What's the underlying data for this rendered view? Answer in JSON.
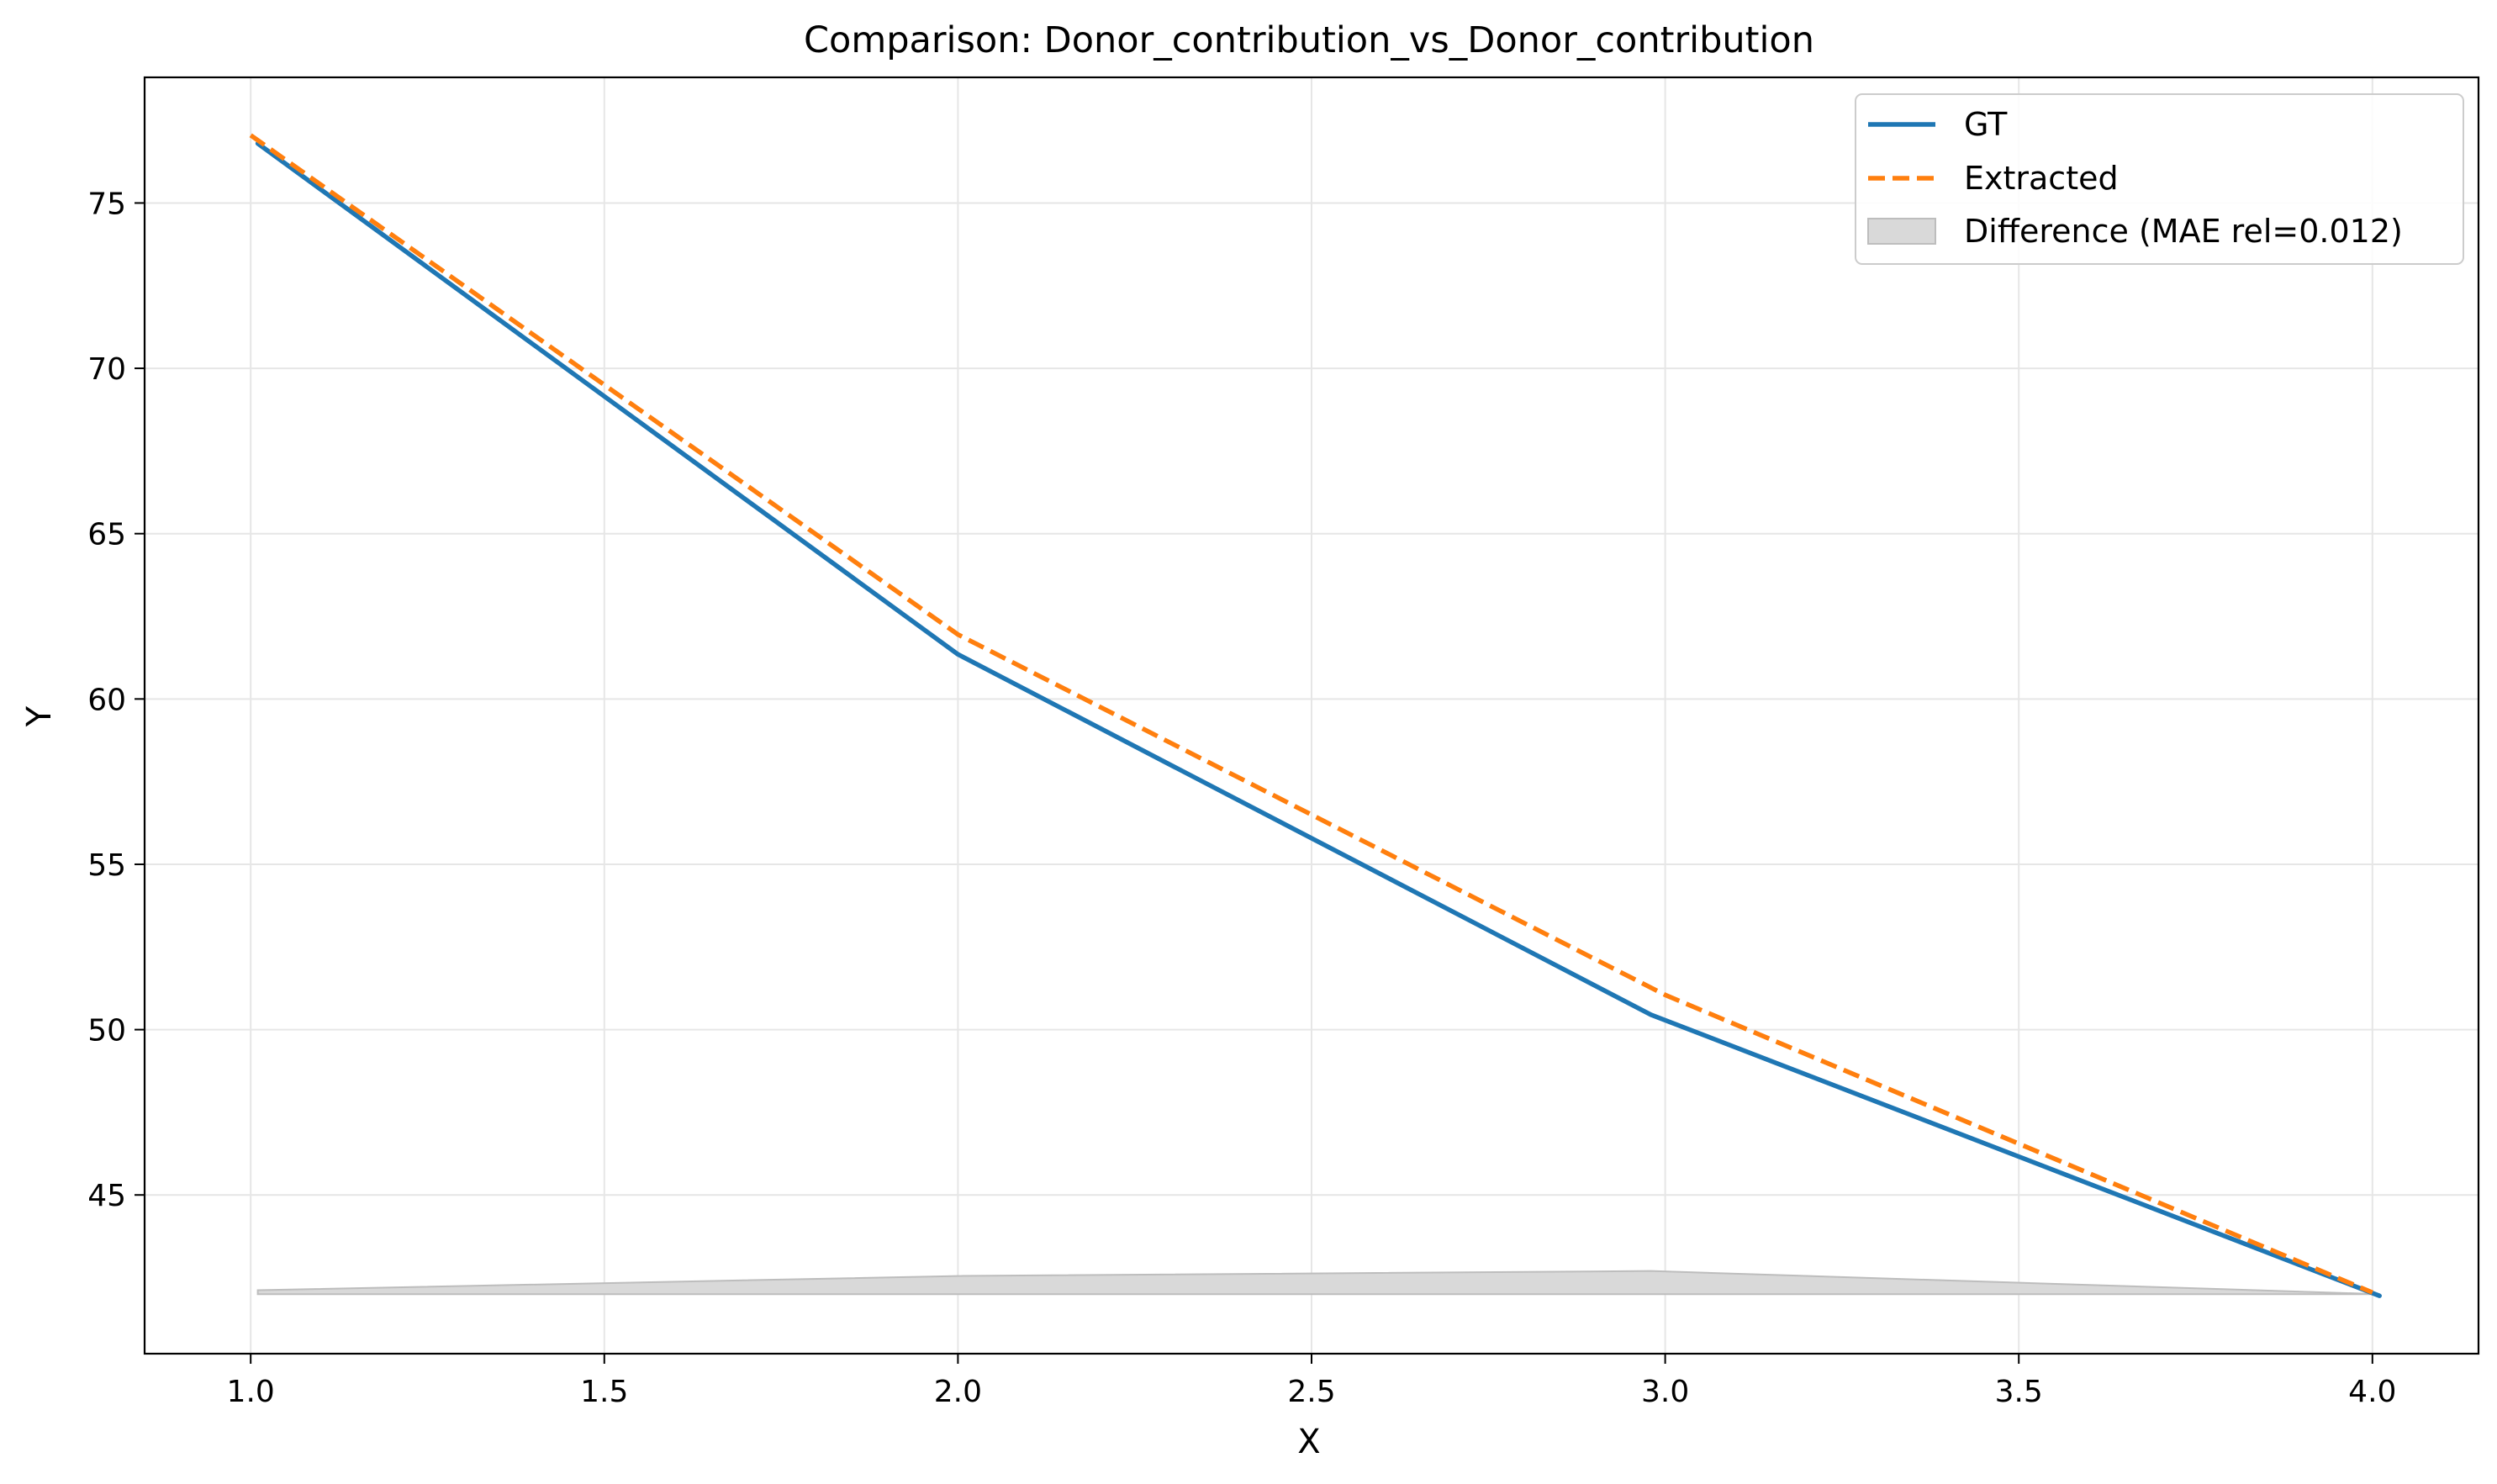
{
  "chart_data": {
    "type": "line",
    "title": "Comparison: Donor_contribution_vs_Donor_contribution",
    "xlabel": "X",
    "ylabel": "Y",
    "xlim": [
      0.85,
      4.15
    ],
    "ylim": [
      40.2,
      78.8
    ],
    "xticks": [
      1.0,
      1.5,
      2.0,
      2.5,
      3.0,
      3.5,
      4.0
    ],
    "xtick_labels": [
      "1.0",
      "1.5",
      "2.0",
      "2.5",
      "3.0",
      "3.5",
      "4.0"
    ],
    "yticks": [
      45,
      50,
      55,
      60,
      65,
      70,
      75
    ],
    "ytick_labels": [
      "45",
      "50",
      "55",
      "60",
      "65",
      "70",
      "75"
    ],
    "grid": true,
    "legend_position": "top-right",
    "series": [
      {
        "name": "GT",
        "color": "#1f77b4",
        "style": "solid",
        "x": [
          1.01,
          2.0,
          2.98,
          4.01
        ],
        "y": [
          76.8,
          61.35,
          50.45,
          41.95
        ]
      },
      {
        "name": "Extracted",
        "color": "#ff7f0e",
        "style": "dashed",
        "x": [
          1.0,
          2.0,
          3.0,
          4.0
        ],
        "y": [
          77.05,
          61.95,
          51.05,
          42.05
        ]
      }
    ],
    "difference_band": {
      "name": "Difference (MAE rel=0.012)",
      "color": "#d9d9d9",
      "edge_color": "#bdbdbd",
      "base": 42.0,
      "x": [
        1.01,
        2.0,
        2.98,
        4.01
      ],
      "y": [
        42.12,
        42.55,
        42.7,
        42.0
      ]
    }
  }
}
